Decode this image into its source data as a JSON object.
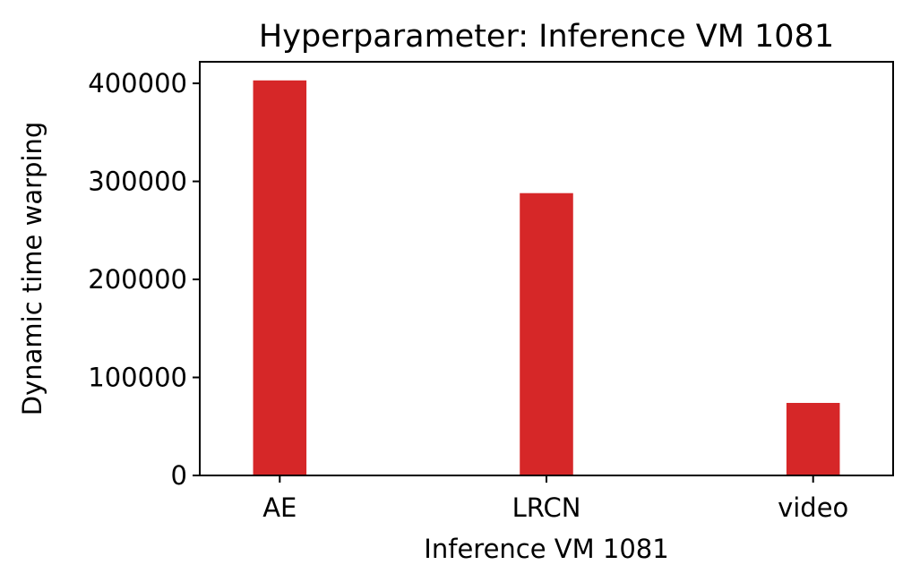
{
  "chart_data": {
    "type": "bar",
    "title": "Hyperparameter: Inference VM 1081",
    "xlabel": "Inference VM 1081",
    "ylabel": "Dynamic time warping",
    "categories": [
      "AE",
      "LRCN",
      "video"
    ],
    "values": [
      403000,
      288000,
      74000
    ],
    "ylim": [
      0,
      422000
    ],
    "yticks": [
      0,
      100000,
      200000,
      300000,
      400000
    ],
    "ytick_labels": [
      "0",
      "100000",
      "200000",
      "300000",
      "400000"
    ],
    "bar_color": "#d62728",
    "grid": false,
    "legend": "none"
  }
}
